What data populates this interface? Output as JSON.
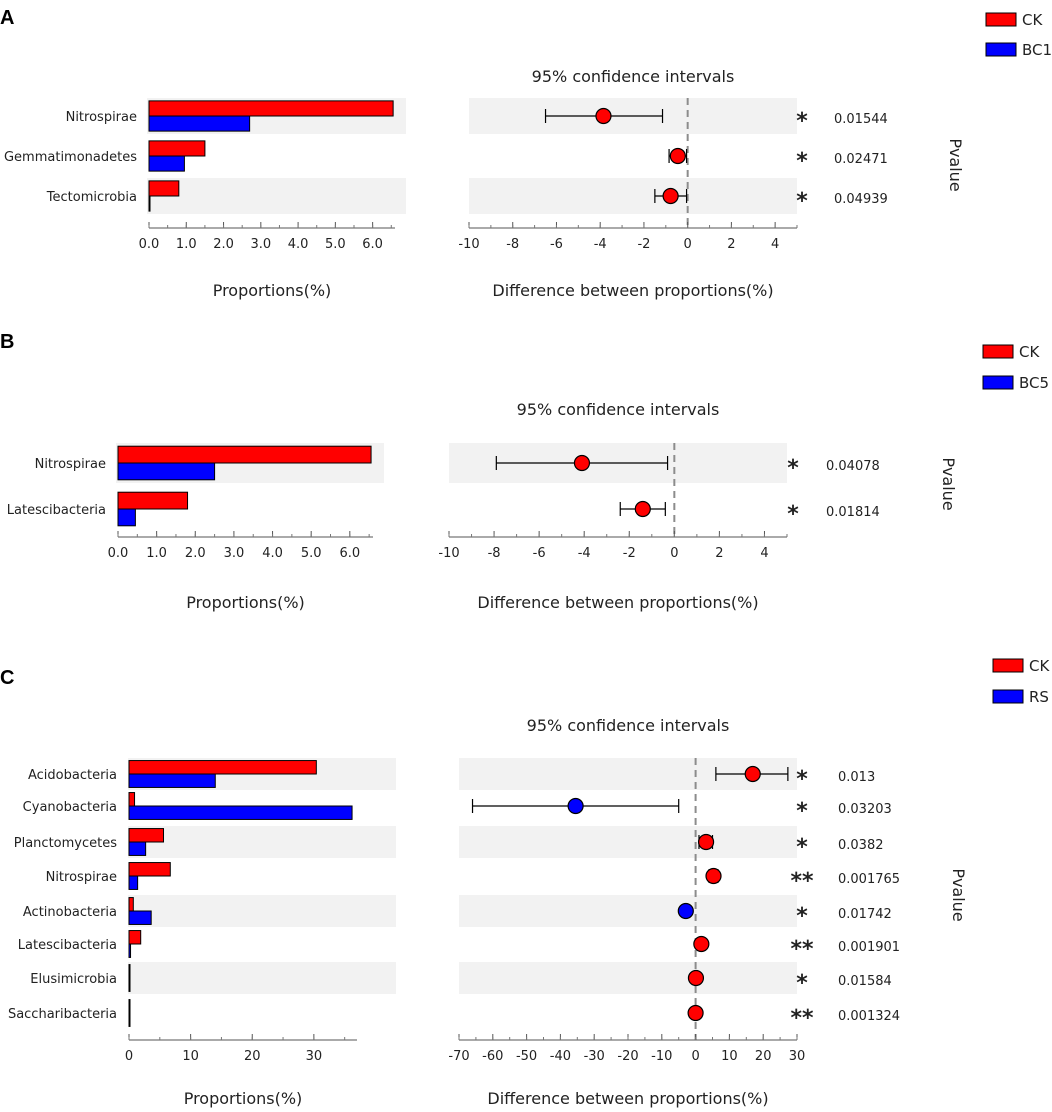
{
  "colors": {
    "ck": "#ff0000",
    "group": "#0000ff",
    "star": "#f47b7b",
    "band": "#f2f2f2",
    "zero_line": "#8c8c8c"
  },
  "chart_data": [
    {
      "type": "bar",
      "panel": "A",
      "series": [
        {
          "name": "CK",
          "color": "#ff0000"
        },
        {
          "name": "BC1",
          "color": "#0000ff"
        }
      ],
      "categories": [
        "Nitrospirae",
        "Gemmatimonadetes",
        "Tectomicrobia"
      ],
      "proportions": {
        "CK": [
          6.55,
          1.5,
          0.8
        ],
        "BC1": [
          2.7,
          0.95,
          0.02
        ]
      },
      "prop_xlim": [
        0,
        6.6
      ],
      "prop_ticks": [
        "0.0",
        "1.0",
        "2.0",
        "3.0",
        "4.0",
        "5.0",
        "6.0"
      ],
      "prop_xlabel": "Proportions(%)",
      "ci_title": "95% confidence intervals",
      "ci_xlabel": "Difference between proportions(%)",
      "ci_xlim": [
        -10,
        5
      ],
      "ci_ticks": [
        "-10",
        "-8",
        "-6",
        "-4",
        "-2",
        "0",
        "2",
        "4"
      ],
      "diff": [
        {
          "est": -3.85,
          "lo": -6.5,
          "hi": -1.15,
          "group": "CK"
        },
        {
          "est": -0.45,
          "lo": -0.85,
          "hi": -0.05,
          "group": "CK"
        },
        {
          "est": -0.78,
          "lo": -1.5,
          "hi": -0.05,
          "group": "CK"
        }
      ],
      "pvalues": [
        "0.01544",
        "0.02471",
        "0.04939"
      ],
      "stars": [
        "*",
        "*",
        "*"
      ],
      "pvalue_title": "Pvalue",
      "legend": [
        "CK",
        "BC1"
      ]
    },
    {
      "type": "bar",
      "panel": "B",
      "series": [
        {
          "name": "CK",
          "color": "#ff0000"
        },
        {
          "name": "BC5",
          "color": "#0000ff"
        }
      ],
      "categories": [
        "Nitrospirae",
        "Latescibacteria"
      ],
      "proportions": {
        "CK": [
          6.55,
          1.8
        ],
        "BC5": [
          2.5,
          0.45
        ]
      },
      "prop_xlim": [
        0,
        6.6
      ],
      "prop_ticks": [
        "0.0",
        "1.0",
        "2.0",
        "3.0",
        "4.0",
        "5.0",
        "6.0"
      ],
      "prop_xlabel": "Proportions(%)",
      "ci_title": "95% confidence intervals",
      "ci_xlabel": "Difference between proportions(%)",
      "ci_xlim": [
        -10,
        5
      ],
      "ci_ticks": [
        "-10",
        "-8",
        "-6",
        "-4",
        "-2",
        "0",
        "2",
        "4"
      ],
      "diff": [
        {
          "est": -4.1,
          "lo": -7.9,
          "hi": -0.3,
          "group": "CK"
        },
        {
          "est": -1.4,
          "lo": -2.4,
          "hi": -0.4,
          "group": "CK"
        }
      ],
      "pvalues": [
        "0.04078",
        "0.01814"
      ],
      "stars": [
        "*",
        "*"
      ],
      "pvalue_title": "Pvalue",
      "legend": [
        "CK",
        "BC5"
      ]
    },
    {
      "type": "bar",
      "panel": "C",
      "series": [
        {
          "name": "CK",
          "color": "#ff0000"
        },
        {
          "name": "RS",
          "color": "#0000ff"
        }
      ],
      "categories": [
        "Acidobacteria",
        "Cyanobacteria",
        "Planctomycetes",
        "Nitrospirae",
        "Actinobacteria",
        "Latescibacteria",
        "Elusimicrobia",
        "Saccharibacteria"
      ],
      "proportions": {
        "CK": [
          30.4,
          0.9,
          5.6,
          6.7,
          0.7,
          1.9,
          0.15,
          0.05
        ],
        "RS": [
          14.0,
          36.2,
          2.7,
          1.4,
          3.6,
          0.25,
          0.1,
          0.05
        ]
      },
      "prop_xlim": [
        0,
        37
      ],
      "prop_ticks": [
        "0",
        "10",
        "20",
        "30"
      ],
      "prop_xlabel": "Proportions(%)",
      "ci_title": "95% confidence intervals",
      "ci_xlabel": "Difference between proportions(%)",
      "ci_xlim": [
        -70,
        30
      ],
      "ci_ticks": [
        "-70",
        "-60",
        "-50",
        "-40",
        "-30",
        "-20",
        "-10",
        "0",
        "10",
        "20",
        "30"
      ],
      "diff": [
        {
          "est": 16.9,
          "lo": 6.0,
          "hi": 27.3,
          "group": "CK"
        },
        {
          "est": -35.5,
          "lo": -66.0,
          "hi": -5.0,
          "group": "RS"
        },
        {
          "est": 3.1,
          "lo": 1.0,
          "hi": 5.0,
          "group": "CK"
        },
        {
          "est": 5.3,
          "lo": 4.0,
          "hi": 6.6,
          "group": "CK"
        },
        {
          "est": -2.9,
          "lo": -4.0,
          "hi": -1.8,
          "group": "RS"
        },
        {
          "est": 1.7,
          "lo": 1.0,
          "hi": 2.4,
          "group": "CK"
        },
        {
          "est": 0.1,
          "lo": 0.0,
          "hi": 0.2,
          "group": "CK"
        },
        {
          "est": 0.0,
          "lo": -0.05,
          "hi": 0.05,
          "group": "CK"
        }
      ],
      "pvalues": [
        "0.013",
        "0.03203",
        "0.0382",
        "0.001765",
        "0.01742",
        "0.001901",
        "0.01584",
        "0.001324"
      ],
      "stars": [
        "*",
        "*",
        "*",
        "**",
        "*",
        "**",
        "*",
        "**"
      ],
      "pvalue_title": "Pvalue",
      "legend": [
        "CK",
        "RS"
      ]
    }
  ]
}
